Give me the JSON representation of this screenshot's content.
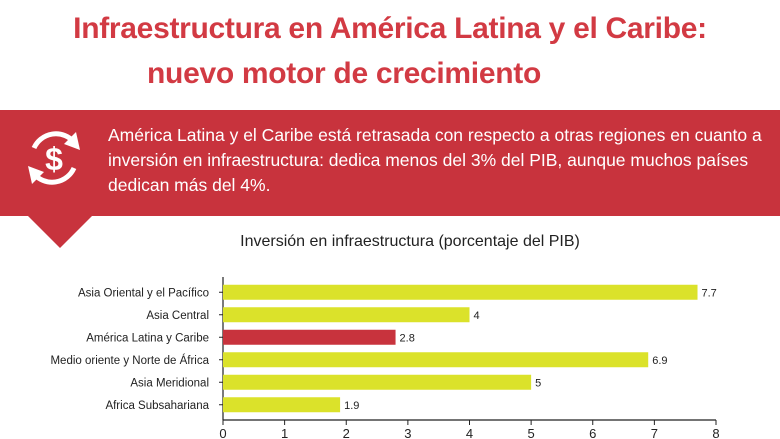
{
  "header": {
    "title_line1": "Infraestructura en América Latina y el Caribe:",
    "title_line2": "nuevo motor de crecimiento"
  },
  "banner": {
    "text": "América Latina y el Caribe está retrasada con respecto a otras regiones en cuanto a inversión en infraestructura: dedica menos del 3% del PIB, aunque muchos países dedican más del 4%.",
    "icon": "dollar-cycle-icon",
    "arrow": "down-arrow-icon"
  },
  "colors": {
    "accent": "#d23a43",
    "banner": "#c8333d",
    "bar": "#dbe22a",
    "bar_highlight": "#c8333d"
  },
  "chart_data": {
    "type": "bar",
    "orientation": "horizontal",
    "title": "Inversión en infraestructura (porcentaje del PIB)",
    "categories": [
      "Asia Oriental y el Pacífico",
      "Asia Central",
      "América Latina y Caribe",
      "Medio oriente y Norte de África",
      "Asia Meridional",
      "Africa Subsahariana"
    ],
    "values": [
      7.7,
      4,
      2.8,
      6.9,
      5,
      1.9
    ],
    "value_labels": [
      "7.7",
      "4",
      "2.8",
      "6.9",
      "5",
      "1.9"
    ],
    "highlight_index": 2,
    "xlim": [
      0,
      8
    ],
    "xticks": [
      "0",
      "1",
      "2",
      "3",
      "4",
      "5",
      "6",
      "7",
      "8"
    ],
    "grid": false
  }
}
